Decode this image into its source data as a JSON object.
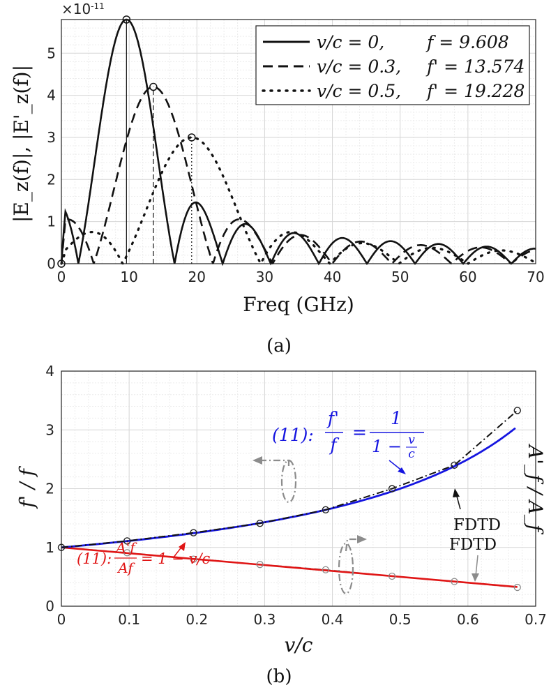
{
  "chart_data": [
    {
      "id": "a",
      "type": "line",
      "caption": "(a)",
      "xlabel": "Freq (GHz)",
      "ylabel": "|E_z(f)|, |E'_z(f)|",
      "y_exponent": "×10",
      "y_exponent_power": "-11",
      "xlim": [
        0,
        70
      ],
      "ylim": [
        0,
        5.8
      ],
      "xticks": [
        0,
        10,
        20,
        30,
        40,
        50,
        60,
        70
      ],
      "yticks": [
        0,
        1,
        2,
        3,
        4,
        5
      ],
      "grid": true,
      "legend_position": "top-right",
      "series": [
        {
          "name": "v/c = 0, f = 9.608",
          "legend_lhs": "v/c = 0,",
          "legend_rhs": "f = 9.608",
          "style": "solid",
          "peak": [
            9.608,
            5.8
          ],
          "sinc_spacing": 7.1
        },
        {
          "name": "v/c = 0.3, f' = 13.574",
          "legend_lhs": "v/c = 0.3,",
          "legend_rhs": "f' = 13.574",
          "style": "dashed",
          "peak": [
            13.574,
            4.2
          ],
          "sinc_spacing": 8.8
        },
        {
          "name": "v/c = 0.5, f' = 19.228",
          "legend_lhs": "v/c = 0.5,",
          "legend_rhs": "f' = 19.228",
          "style": "dotted",
          "peak": [
            19.228,
            3.0
          ],
          "sinc_spacing": 10.2
        }
      ]
    },
    {
      "id": "b",
      "type": "line",
      "caption": "(b)",
      "xlabel": "v/c",
      "ylabel_left": "f' / f",
      "ylabel_right": "A'_f / A_f",
      "xlim": [
        0,
        0.7
      ],
      "ylim": [
        0,
        4
      ],
      "xticks": [
        0,
        0.1,
        0.2,
        0.3,
        0.4,
        0.5,
        0.6,
        0.7
      ],
      "xtick_labels": [
        "0",
        "0.1",
        "0.2",
        "0.3",
        "0.4",
        "0.5",
        "0.6",
        "0.7"
      ],
      "yticks": [
        0,
        1,
        2,
        3,
        4
      ],
      "grid": true,
      "series": [
        {
          "name": "(11): f'/f = 1/(1 - v/c)",
          "color": "#1515e0",
          "style": "solid",
          "x": [
            0,
            0.1,
            0.2,
            0.3,
            0.4,
            0.5,
            0.6,
            0.67
          ],
          "y": [
            1.0,
            1.111,
            1.25,
            1.429,
            1.667,
            2.0,
            2.5,
            3.03
          ]
        },
        {
          "name": "FDTD (f'/f)",
          "color": "#111111",
          "style": "dashdot",
          "x": [
            0,
            0.097,
            0.195,
            0.293,
            0.39,
            0.488,
            0.58,
            0.673
          ],
          "y": [
            1.0,
            1.11,
            1.25,
            1.41,
            1.64,
            2.0,
            2.4,
            3.33
          ]
        },
        {
          "name": "(11): A'_f/A_f = 1 - v/c",
          "color": "#e01515",
          "style": "solid",
          "x": [
            0,
            0.673
          ],
          "y": [
            1.0,
            0.327
          ]
        },
        {
          "name": "FDTD (A'_f/A_f)",
          "color": "#8c8c8c",
          "style": "dashed",
          "x": [
            0,
            0.097,
            0.195,
            0.293,
            0.39,
            0.488,
            0.58,
            0.673
          ],
          "y": [
            1.0,
            0.91,
            0.8,
            0.71,
            0.62,
            0.51,
            0.42,
            0.32
          ]
        }
      ],
      "annotations": {
        "blue_formula_prefix": "(11):",
        "blue_formula_lhs_num": "f'",
        "blue_formula_lhs_den": "f",
        "blue_formula_rhs_num": "1",
        "blue_formula_rhs_den": "1 − v/c",
        "blue_formula_rhs_den_start": "1 −",
        "blue_formula_rhs_den_v": "v",
        "blue_formula_rhs_den_c": "c",
        "red_formula_prefix": "(11):",
        "red_formula_lhs_num": "A'f",
        "red_formula_lhs_den": "Af",
        "red_formula_rhs": "= 1 − v/c",
        "fdtd_black": "FDTD",
        "fdtd_gray": "FDTD"
      }
    }
  ]
}
